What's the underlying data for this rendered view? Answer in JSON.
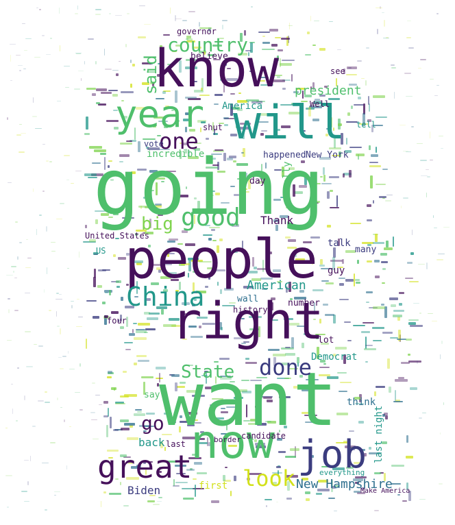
{
  "colors": {
    "dark_purple": "#45105a",
    "indigo": "#3b3c7f",
    "blue_teal": "#2e6f8e",
    "teal": "#22978a",
    "green": "#4fbf6c",
    "light_green": "#7fd34e",
    "yellow": "#d2e11b"
  },
  "words": [
    {
      "text": "going",
      "color": "green"
    },
    {
      "text": "want",
      "color": "green"
    },
    {
      "text": "people",
      "color": "dark_purple"
    },
    {
      "text": "right",
      "color": "dark_purple"
    },
    {
      "text": "know",
      "color": "dark_purple"
    },
    {
      "text": "will",
      "color": "teal"
    },
    {
      "text": "now",
      "color": "green"
    },
    {
      "text": "job",
      "color": "indigo"
    },
    {
      "text": "year",
      "color": "green"
    },
    {
      "text": "China",
      "color": "teal"
    },
    {
      "text": "great",
      "color": "dark_purple"
    },
    {
      "text": "good",
      "color": "green"
    },
    {
      "text": "one",
      "color": "dark_purple"
    },
    {
      "text": "country",
      "color": "green"
    },
    {
      "text": "done",
      "color": "indigo"
    },
    {
      "text": "State",
      "color": "green"
    },
    {
      "text": "look",
      "color": "yellow"
    },
    {
      "text": "big",
      "color": "light_green"
    },
    {
      "text": "go",
      "color": "dark_purple"
    },
    {
      "text": "said",
      "color": "green"
    },
    {
      "text": "president",
      "color": "green"
    },
    {
      "text": "American",
      "color": "teal"
    },
    {
      "text": "New Hampshire",
      "color": "blue_teal"
    },
    {
      "text": "Biden",
      "color": "indigo"
    },
    {
      "text": "Thank",
      "color": "dark_purple"
    },
    {
      "text": "back",
      "color": "teal"
    },
    {
      "text": "America",
      "color": "teal"
    },
    {
      "text": "believe",
      "color": "dark_purple"
    },
    {
      "text": "incredible",
      "color": "green"
    },
    {
      "text": "happened",
      "color": "indigo"
    },
    {
      "text": "New York",
      "color": "indigo"
    },
    {
      "text": "United States",
      "color": "dark_purple"
    },
    {
      "text": "last night",
      "color": "teal"
    },
    {
      "text": "four",
      "color": "dark_purple"
    },
    {
      "text": "day",
      "color": "dark_purple"
    },
    {
      "text": "guy",
      "color": "dark_purple"
    },
    {
      "text": "talk",
      "color": "indigo"
    },
    {
      "text": "wall",
      "color": "blue_teal"
    },
    {
      "text": "number",
      "color": "dark_purple"
    },
    {
      "text": "history",
      "color": "dark_purple"
    },
    {
      "text": "Democrat",
      "color": "teal"
    },
    {
      "text": "think",
      "color": "blue_teal"
    },
    {
      "text": "lot",
      "color": "dark_purple"
    },
    {
      "text": "say",
      "color": "green"
    },
    {
      "text": "candidate",
      "color": "dark_purple"
    },
    {
      "text": "first",
      "color": "yellow"
    },
    {
      "text": "last",
      "color": "dark_purple"
    },
    {
      "text": "shut",
      "color": "dark_purple"
    },
    {
      "text": "many",
      "color": "indigo"
    },
    {
      "text": "see",
      "color": "dark_purple"
    },
    {
      "text": "tell",
      "color": "teal"
    },
    {
      "text": "really",
      "color": "green"
    },
    {
      "text": "vote",
      "color": "indigo"
    },
    {
      "text": "Well",
      "color": "dark_purple"
    },
    {
      "text": "US",
      "color": "teal"
    },
    {
      "text": "border",
      "color": "dark_purple"
    },
    {
      "text": "governor",
      "color": "dark_purple"
    },
    {
      "text": "everything",
      "color": "teal"
    },
    {
      "text": "Make America",
      "color": "dark_purple"
    }
  ]
}
